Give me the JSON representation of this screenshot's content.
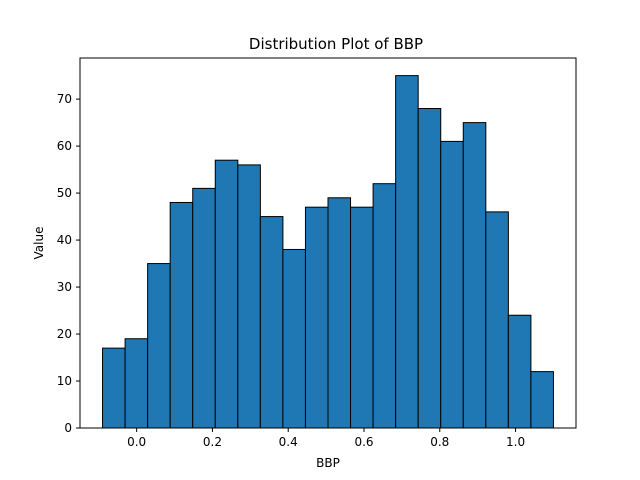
{
  "chart_data": {
    "type": "bar",
    "title": "Distribution Plot of BBP",
    "xlabel": "BBP",
    "ylabel": "Value",
    "bin_edges": [
      -0.09,
      -0.0305,
      0.029,
      0.0885,
      0.148,
      0.2075,
      0.267,
      0.3265,
      0.386,
      0.4455,
      0.505,
      0.5645,
      0.624,
      0.6835,
      0.743,
      0.8025,
      0.862,
      0.9215,
      0.981,
      1.0405,
      1.1
    ],
    "values": [
      17,
      19,
      35,
      48,
      51,
      57,
      56,
      45,
      38,
      47,
      49,
      47,
      52,
      75,
      68,
      61,
      65,
      46,
      24,
      12
    ],
    "xlim": [
      -0.1495,
      1.1595
    ],
    "ylim": [
      0,
      78.75
    ],
    "xticks": [
      0.0,
      0.2,
      0.4,
      0.6,
      0.8,
      1.0
    ],
    "xtick_labels": [
      "0.0",
      "0.2",
      "0.4",
      "0.6",
      "0.8",
      "1.0"
    ],
    "yticks": [
      0,
      10,
      20,
      30,
      40,
      50,
      60,
      70
    ],
    "ytick_labels": [
      "0",
      "10",
      "20",
      "30",
      "40",
      "50",
      "60",
      "70"
    ],
    "bar_color": "#1f77b4",
    "edge_color": "#000000",
    "grid": false
  }
}
